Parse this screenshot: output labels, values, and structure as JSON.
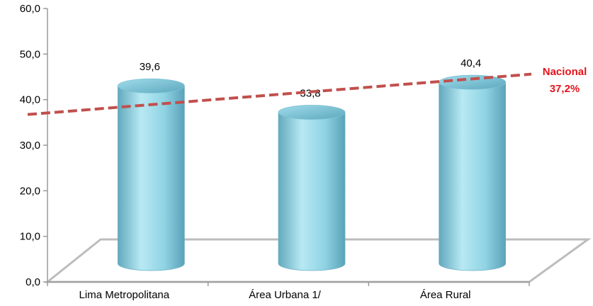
{
  "chart_data": {
    "type": "bar",
    "categories": [
      "Lima Metropolitana",
      "Área Urbana 1/",
      "Área Rural"
    ],
    "values": [
      39.6,
      33.8,
      40.4
    ],
    "value_labels": [
      "39,6",
      "33,8",
      "40,4"
    ],
    "ylim": [
      0,
      60
    ],
    "yticks": [
      0,
      10,
      20,
      30,
      40,
      50,
      60
    ],
    "ytick_labels": [
      "0,0",
      "10,0",
      "20,0",
      "30,0",
      "40,0",
      "50,0",
      "60,0"
    ],
    "reference_line": {
      "name": "Nacional",
      "value": 37.2,
      "value_label": "37,2%",
      "color": "#c0504d"
    },
    "bar_color": "#8fd3e4",
    "label_color": "#e3141b",
    "grid": false,
    "legend": "none"
  }
}
